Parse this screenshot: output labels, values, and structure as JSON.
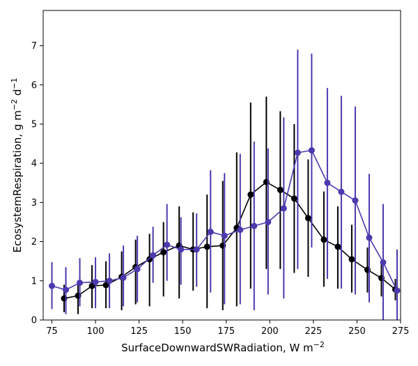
{
  "chart_data": {
    "type": "line",
    "xlabel": "SurfaceDownwardSWRadiation,  W m",
    "xlabel_sup": "−2",
    "ylabel": "EcosystemRespiration,  g m",
    "ylabel_sup1": "−2",
    "ylabel_mid": " d",
    "ylabel_sup2": "−1",
    "xlim": [
      70,
      275
    ],
    "ylim": [
      0,
      7.9
    ],
    "xticks": [
      75,
      100,
      125,
      150,
      175,
      200,
      225,
      250,
      275
    ],
    "yticks": [
      0,
      1,
      2,
      3,
      4,
      5,
      6,
      7
    ],
    "grid": false,
    "series": [
      {
        "color": "#000000",
        "x": [
          82,
          90,
          98,
          106,
          115,
          123,
          131,
          139,
          148,
          156,
          164,
          173,
          181,
          189,
          198,
          206,
          214,
          222,
          231,
          239,
          247,
          256,
          264,
          272
        ],
        "y": [
          0.55,
          0.62,
          0.87,
          0.89,
          1.1,
          1.35,
          1.55,
          1.73,
          1.9,
          1.8,
          1.87,
          1.9,
          2.35,
          3.2,
          3.52,
          3.32,
          3.1,
          2.6,
          2.05,
          1.87,
          1.55,
          1.28,
          1.07,
          0.78
        ],
        "err_low": [
          0.2,
          0.15,
          0.3,
          0.3,
          0.25,
          0.4,
          0.35,
          0.6,
          0.55,
          0.75,
          0.3,
          0.25,
          0.35,
          0.8,
          1.3,
          1.3,
          1.2,
          1.1,
          0.85,
          0.8,
          0.7,
          0.7,
          0.6,
          0.5
        ],
        "err_high": [
          0.9,
          0.95,
          1.4,
          1.5,
          1.75,
          2.05,
          2.2,
          2.5,
          2.9,
          2.75,
          3.2,
          3.55,
          4.28,
          5.55,
          5.7,
          5.33,
          5.0,
          4.1,
          3.28,
          2.9,
          2.43,
          1.85,
          1.45,
          1.05
        ]
      },
      {
        "color": "#4a3aad",
        "x": [
          75,
          83,
          91,
          100,
          108,
          116,
          124,
          133,
          141,
          149,
          158,
          166,
          174,
          183,
          191,
          199,
          208,
          216,
          224,
          233,
          241,
          249,
          257,
          265,
          273
        ],
        "y": [
          0.87,
          0.77,
          0.95,
          0.97,
          1.0,
          1.08,
          1.3,
          1.65,
          1.92,
          1.8,
          1.8,
          2.25,
          2.15,
          2.3,
          2.4,
          2.5,
          2.85,
          4.27,
          4.33,
          3.5,
          3.27,
          3.05,
          2.1,
          1.47,
          0.75
        ],
        "err_low": [
          0.28,
          0.15,
          0.35,
          0.3,
          0.3,
          0.35,
          0.45,
          0.95,
          1.0,
          0.9,
          0.85,
          0.7,
          0.4,
          0.4,
          0.25,
          0.65,
          0.55,
          1.3,
          1.85,
          1.05,
          0.8,
          0.65,
          0.45,
          0.0,
          0.0
        ],
        "err_high": [
          1.48,
          1.35,
          1.58,
          1.6,
          1.7,
          1.9,
          2.15,
          2.38,
          2.96,
          2.62,
          2.72,
          3.82,
          3.75,
          4.24,
          4.55,
          4.38,
          5.17,
          6.9,
          6.8,
          5.92,
          5.72,
          5.45,
          3.73,
          2.96,
          1.8
        ]
      }
    ]
  }
}
